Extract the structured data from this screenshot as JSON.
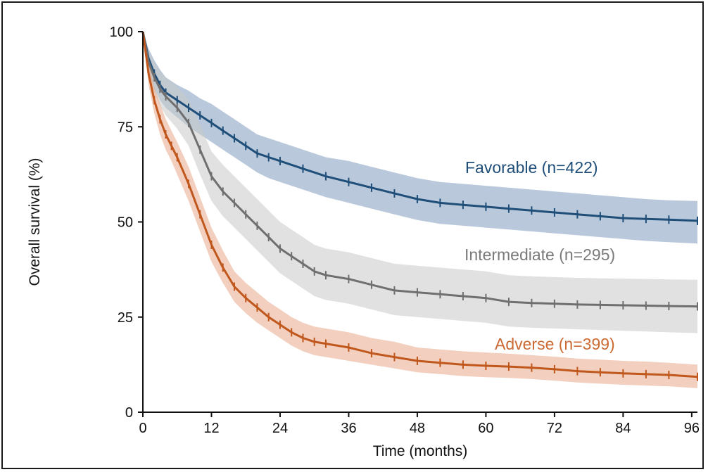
{
  "chart_data": {
    "type": "line",
    "xlabel": "Time (months)",
    "ylabel": "Overall survival (%)",
    "xlim": [
      0,
      97
    ],
    "ylim": [
      0,
      100
    ],
    "xticks": [
      0,
      12,
      24,
      36,
      48,
      60,
      72,
      84,
      96
    ],
    "yticks": [
      0,
      25,
      50,
      75,
      100
    ],
    "series": [
      {
        "name": "Favorable (n=422)",
        "color": "#1f4e79",
        "band_color": "#7f9cbd",
        "x": [
          0,
          1,
          2,
          3,
          4,
          6,
          8,
          10,
          12,
          14,
          16,
          18,
          20,
          22,
          24,
          28,
          32,
          36,
          40,
          44,
          48,
          52,
          56,
          60,
          64,
          68,
          72,
          76,
          80,
          84,
          88,
          92,
          97
        ],
        "y": [
          100,
          93,
          89,
          86,
          84,
          82,
          80,
          78,
          76,
          74,
          72,
          70,
          68,
          67,
          66,
          64,
          62,
          60.5,
          59,
          57.5,
          56,
          55,
          54.5,
          54,
          53.5,
          53,
          52.5,
          52,
          51.5,
          51,
          50.8,
          50.6,
          50.3
        ],
        "lower": [
          100,
          90,
          85,
          82,
          80,
          77.5,
          75,
          73,
          71,
          69,
          67,
          65,
          63,
          61.5,
          60.5,
          58.5,
          56.5,
          55,
          53.5,
          52,
          50.5,
          49.5,
          49,
          48.5,
          48,
          47.5,
          47,
          46.5,
          46,
          45.5,
          45,
          44.7,
          44.3
        ],
        "upper": [
          100,
          95.5,
          92.5,
          90,
          88,
          86,
          84.5,
          82.5,
          81,
          79,
          77,
          75,
          73,
          72,
          71,
          69,
          67,
          66,
          64.5,
          63,
          61.5,
          60.5,
          60,
          59.5,
          59,
          58.5,
          58,
          57.5,
          57,
          56.5,
          56,
          55.7,
          55.5
        ]
      },
      {
        "name": "Intermediate (n=295)",
        "color": "#6f6f6f",
        "band_color": "#c8c8c8",
        "x": [
          0,
          1,
          2,
          3,
          4,
          6,
          8,
          10,
          12,
          14,
          16,
          18,
          20,
          22,
          24,
          26,
          28,
          30,
          32,
          36,
          40,
          44,
          48,
          52,
          56,
          60,
          64,
          68,
          72,
          76,
          80,
          84,
          88,
          92,
          97
        ],
        "y": [
          100,
          92,
          88,
          85,
          83,
          80,
          76,
          69,
          62,
          58,
          55,
          52,
          49,
          46,
          43,
          41,
          39,
          37,
          36,
          35,
          33.5,
          32,
          31.5,
          31,
          30.5,
          30,
          29,
          28.7,
          28.5,
          28.3,
          28.2,
          28.1,
          28,
          27.9,
          27.8
        ],
        "lower": [
          100,
          89,
          84,
          80.5,
          78,
          74.5,
          70,
          62.5,
          55.5,
          51.5,
          48.5,
          45.5,
          42.5,
          39.5,
          36.5,
          34.5,
          32.5,
          30.5,
          29.5,
          28.5,
          27,
          25.5,
          25,
          24.5,
          24,
          23.5,
          22.5,
          22.2,
          22,
          21.8,
          21.6,
          21.4,
          21.2,
          21,
          20.8
        ],
        "upper": [
          100,
          95,
          92,
          89.5,
          88,
          85.5,
          82,
          75.5,
          68.5,
          65,
          62,
          59,
          56,
          53,
          50,
          48,
          46,
          44,
          43,
          42,
          40.5,
          39,
          38.5,
          38,
          37.5,
          37,
          36,
          35.7,
          35.5,
          35.3,
          35.2,
          35.1,
          35,
          34.9,
          34.8
        ]
      },
      {
        "name": "Adverse (n=399)",
        "color": "#c0571c",
        "band_color": "#e8a888",
        "x": [
          0,
          1,
          2,
          3,
          4,
          5,
          6,
          8,
          10,
          12,
          14,
          16,
          18,
          20,
          22,
          24,
          26,
          28,
          30,
          32,
          36,
          40,
          44,
          48,
          52,
          56,
          60,
          64,
          68,
          72,
          76,
          80,
          84,
          88,
          92,
          97
        ],
        "y": [
          100,
          89,
          82,
          77,
          73,
          70,
          67,
          60,
          52,
          44,
          38,
          33,
          30,
          27.5,
          25,
          23,
          21,
          19.5,
          18.5,
          18,
          17,
          15.5,
          14.5,
          13.5,
          13,
          12.5,
          12.2,
          12,
          11.7,
          11.3,
          10.8,
          10.5,
          10.2,
          10,
          9.8,
          9.3
        ],
        "lower": [
          100,
          86,
          78.5,
          73,
          69,
          66,
          62.5,
          55.5,
          47.5,
          39.5,
          34,
          29,
          26,
          23.5,
          21.5,
          19.5,
          17.5,
          16,
          15,
          14.5,
          13.5,
          12.5,
          11.5,
          10.5,
          10,
          9.5,
          9.2,
          9,
          8.7,
          8.3,
          7.8,
          7.5,
          7.2,
          7,
          6.8,
          6.3
        ],
        "upper": [
          100,
          92,
          85.5,
          81,
          77,
          74,
          71,
          64.5,
          56.5,
          48.5,
          42.5,
          37,
          34,
          31.5,
          29,
          27,
          25,
          23.5,
          22.5,
          22,
          21,
          19.5,
          18.5,
          17,
          16.5,
          16,
          15.7,
          15.4,
          15,
          14.6,
          14.1,
          13.8,
          13.5,
          13.3,
          13,
          12.5
        ]
      }
    ],
    "annotations": [
      {
        "text": "Favorable (n=422)",
        "color": "#1f4e79"
      },
      {
        "text": "Intermediate (n=295)",
        "color": "#7a7a7a"
      },
      {
        "text": "Adverse (n=399)",
        "color": "#cc6a33"
      }
    ],
    "grid": false,
    "legend": "inline-labels"
  }
}
